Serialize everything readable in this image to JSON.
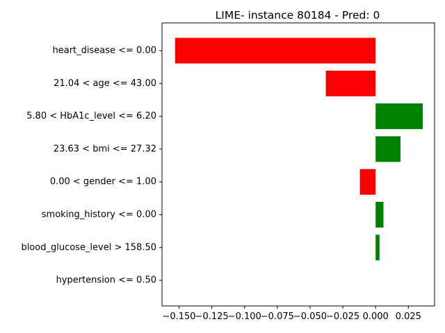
{
  "chart_data": {
    "type": "bar",
    "orientation": "horizontal",
    "title": "LIME- instance 80184 - Pred: 0",
    "xlabel": "",
    "ylabel": "",
    "xlim": [
      -0.163,
      0.045
    ],
    "grid": false,
    "legend": "none",
    "colors": {
      "positive": "#008000",
      "negative": "#ff0000"
    },
    "categories": [
      "heart_disease <= 0.00",
      "21.04 < age <= 43.00",
      "5.80 < HbA1c_level <= 6.20",
      "23.63 < bmi <= 27.32",
      "0.00 < gender <= 1.00",
      "smoking_history <= 0.00",
      "blood_glucose_level > 158.50",
      "hypertension <= 0.50"
    ],
    "values": [
      -0.153,
      -0.038,
      0.036,
      0.019,
      -0.012,
      0.006,
      0.003,
      0.0
    ],
    "xticks": [
      -0.15,
      -0.125,
      -0.1,
      -0.075,
      -0.05,
      -0.025,
      0.0,
      0.025
    ],
    "xtick_labels": [
      "−0.150",
      "−0.125",
      "−0.100",
      "−0.075",
      "−0.050",
      "−0.025",
      "0.000",
      "0.025"
    ]
  }
}
